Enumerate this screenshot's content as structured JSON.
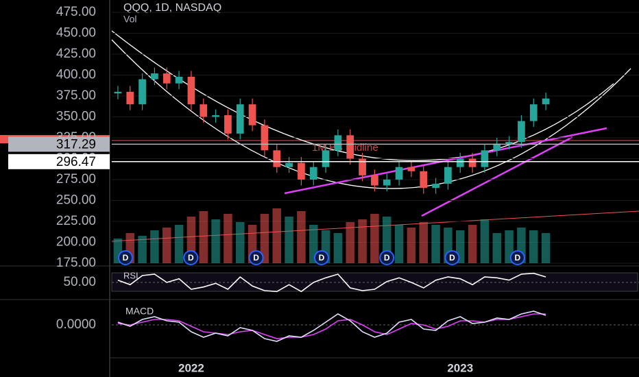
{
  "chart_data": {
    "type": "candlestick",
    "title": "QQQ, 1D, NASDAQ",
    "subtitle": "Vol",
    "categories": [
      null,
      null,
      null,
      null,
      null,
      null,
      "2022",
      null,
      null,
      null,
      null,
      null,
      null,
      null,
      null,
      null,
      null,
      null,
      null,
      null,
      null,
      null,
      null,
      null,
      null,
      null,
      null,
      null,
      "2023",
      null,
      null,
      null,
      null,
      null,
      null,
      null
    ],
    "open": [
      378,
      380,
      365,
      395,
      402,
      390,
      398,
      365,
      350,
      352,
      330,
      365,
      340,
      310,
      290,
      295,
      275,
      290,
      310,
      328,
      300,
      280,
      268,
      275,
      290,
      285,
      265,
      270,
      290,
      300,
      290,
      310,
      318,
      320,
      345,
      365
    ],
    "high": [
      387,
      387,
      402,
      409,
      409,
      405,
      405,
      372,
      359,
      359,
      372,
      372,
      347,
      317,
      302,
      302,
      297,
      317,
      335,
      335,
      307,
      287,
      282,
      297,
      297,
      292,
      277,
      297,
      307,
      307,
      317,
      325,
      327,
      352,
      372,
      379
    ],
    "low": [
      371,
      358,
      358,
      388,
      383,
      383,
      358,
      343,
      343,
      323,
      323,
      333,
      303,
      283,
      283,
      268,
      268,
      283,
      303,
      293,
      273,
      261,
      261,
      268,
      278,
      258,
      258,
      263,
      283,
      283,
      283,
      303,
      311,
      313,
      338,
      358
    ],
    "close": [
      380,
      365,
      395,
      402,
      390,
      398,
      365,
      350,
      352,
      330,
      365,
      340,
      310,
      290,
      295,
      275,
      290,
      310,
      328,
      300,
      280,
      268,
      275,
      290,
      285,
      265,
      270,
      290,
      300,
      290,
      310,
      318,
      320,
      345,
      365,
      372
    ],
    "up_color": "#26a69a",
    "down_color": "#ef5350",
    "volume": [
      45,
      55,
      50,
      60,
      65,
      70,
      85,
      95,
      80,
      90,
      75,
      70,
      90,
      100,
      85,
      95,
      70,
      60,
      55,
      75,
      80,
      90,
      85,
      70,
      65,
      75,
      70,
      65,
      60,
      70,
      80,
      55,
      60,
      65,
      60,
      55
    ],
    "ylim": [
      175,
      475
    ],
    "yticks": [
      {
        "value": 475,
        "label": "475.00"
      },
      {
        "value": 450,
        "label": "450.00"
      },
      {
        "value": 425,
        "label": "425.00"
      },
      {
        "value": 400,
        "label": "400.00"
      },
      {
        "value": 375,
        "label": "375.00"
      },
      {
        "value": 350,
        "label": "350.00"
      },
      {
        "value": 325,
        "label": "325.00"
      },
      {
        "value": 300,
        "label": "300.00"
      },
      {
        "value": 275,
        "label": "275.00"
      },
      {
        "value": 250,
        "label": "250.00"
      },
      {
        "value": 225,
        "label": "225.00"
      },
      {
        "value": 200,
        "label": "200.00"
      },
      {
        "value": 175,
        "label": "175.00"
      }
    ],
    "price_lines": [
      {
        "value": 317.29,
        "label": "317.29",
        "color": "#b2b5be"
      },
      {
        "value": 296.47,
        "label": "296.47",
        "color": "#ffffff"
      }
    ],
    "annotation": "1M BB Midline",
    "dividend_markers": [
      "D",
      "D",
      "D",
      "D",
      "D",
      "D",
      "D"
    ],
    "rsi": {
      "title": "RSI",
      "color": "#ffffff",
      "ylim": [
        20,
        80
      ],
      "yticks": [
        {
          "value": 50,
          "label": "50.00"
        }
      ],
      "values": [
        55,
        45,
        65,
        68,
        50,
        58,
        35,
        40,
        48,
        35,
        62,
        42,
        32,
        30,
        45,
        30,
        50,
        60,
        68,
        38,
        32,
        35,
        52,
        60,
        50,
        38,
        55,
        62,
        58,
        45,
        62,
        60,
        55,
        68,
        70,
        62
      ]
    },
    "macd": {
      "title": "MACD",
      "color": "#e0e0ff",
      "signal_color": "#e040fb",
      "ylim": [
        -15,
        15
      ],
      "yticks": [
        {
          "value": 0,
          "label": "0.0000"
        }
      ],
      "values": [
        2,
        -1,
        4,
        6,
        3,
        2,
        -5,
        -9,
        -6,
        -8,
        -2,
        -4,
        -10,
        -12,
        -8,
        -9,
        -4,
        2,
        8,
        3,
        -5,
        -9,
        -6,
        2,
        4,
        -3,
        -4,
        3,
        6,
        1,
        2,
        5,
        4,
        8,
        10,
        7
      ],
      "signal": [
        1,
        0,
        2,
        4,
        4,
        3,
        -1,
        -5,
        -6,
        -7,
        -5,
        -4,
        -7,
        -10,
        -9,
        -9,
        -7,
        -3,
        3,
        4,
        0,
        -5,
        -7,
        -3,
        1,
        0,
        -3,
        -1,
        3,
        3,
        2,
        4,
        4,
        6,
        8,
        8
      ]
    }
  }
}
